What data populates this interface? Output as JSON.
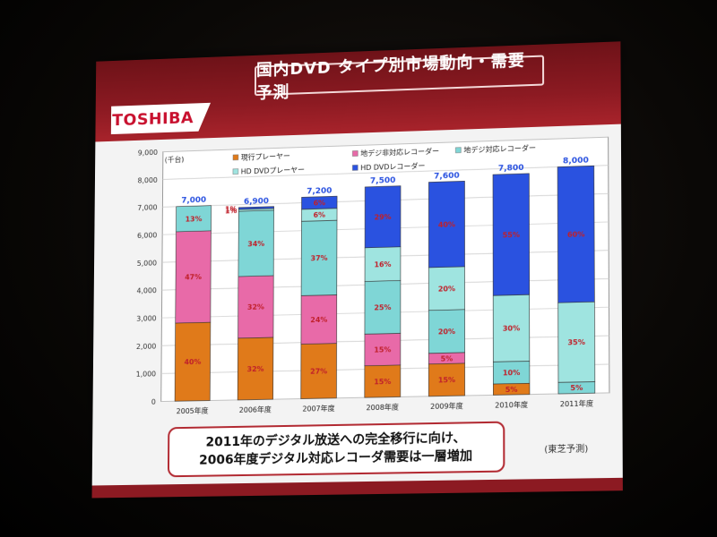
{
  "slide": {
    "title": "国内DVD タイプ別市場動向・需要予測",
    "logo": "TOSHIBA",
    "note_line1": "2011年のデジタル放送への完全移行に向け、",
    "note_line2": "2006年度デジタル対応レコーダ需要は一層増加",
    "source": "(東芝予測)"
  },
  "colors": {
    "current_player": "#e07a1a",
    "non_digital_recorder": "#e86aa8",
    "digital_recorder": "#7fd6d6",
    "hd_dvd_player": "#9fe4e0",
    "hd_dvd_recorder": "#2a52e0",
    "total_label": "#2a52e0",
    "pct_label": "#c0202a"
  },
  "chart_data": {
    "type": "bar",
    "stacked": true,
    "unit_label": "(千台)",
    "categories": [
      "2005年度",
      "2006年度",
      "2007年度",
      "2008年度",
      "2009年度",
      "2010年度",
      "2011年度"
    ],
    "totals": [
      7000,
      6900,
      7200,
      7500,
      7600,
      7800,
      8000
    ],
    "total_labels": [
      "7,000",
      "6,900",
      "7,200",
      "7,500",
      "7,600",
      "7,800",
      "8,000"
    ],
    "ylim": [
      0,
      9000
    ],
    "yticks": [
      "0",
      "1,000",
      "2,000",
      "3,000",
      "4,000",
      "5,000",
      "6,000",
      "7,000",
      "8,000",
      "9,000"
    ],
    "legend": [
      {
        "key": "current_player",
        "name": "現行プレーヤー"
      },
      {
        "key": "non_digital_recorder",
        "name": "地デジ非対応レコーダー"
      },
      {
        "key": "digital_recorder",
        "name": "地デジ対応レコーダー"
      },
      {
        "key": "hd_dvd_player",
        "name": "HD DVDプレーヤー"
      },
      {
        "key": "hd_dvd_recorder",
        "name": "HD DVDレコーダー"
      }
    ],
    "series": [
      {
        "key": "current_player",
        "name": "現行プレーヤー",
        "percent": [
          40,
          32,
          27,
          15,
          15,
          5,
          null
        ],
        "labels": [
          "40%",
          "32%",
          "27%",
          "15%",
          "15%",
          "5%",
          ""
        ]
      },
      {
        "key": "non_digital_recorder",
        "name": "地デジ非対応レコーダー",
        "percent": [
          47,
          32,
          24,
          15,
          5,
          null,
          null
        ],
        "labels": [
          "47%",
          "32%",
          "24%",
          "15%",
          "5%",
          "",
          ""
        ]
      },
      {
        "key": "digital_recorder",
        "name": "地デジ対応レコーダー",
        "percent": [
          13,
          34,
          37,
          25,
          20,
          10,
          5
        ],
        "labels": [
          "13%",
          "34%",
          "37%",
          "25%",
          "20%",
          "10%",
          "5%"
        ]
      },
      {
        "key": "hd_dvd_player",
        "name": "HD DVDプレーヤー",
        "percent": [
          null,
          1,
          6,
          16,
          20,
          30,
          35
        ],
        "labels": [
          "",
          "1%",
          "6%",
          "16%",
          "20%",
          "30%",
          "35%"
        ]
      },
      {
        "key": "hd_dvd_recorder",
        "name": "HD DVDレコーダー",
        "percent": [
          null,
          1,
          6,
          29,
          40,
          55,
          60
        ],
        "labels": [
          "",
          "1%",
          "6%",
          "29%",
          "40%",
          "55%",
          "60%"
        ]
      }
    ]
  }
}
